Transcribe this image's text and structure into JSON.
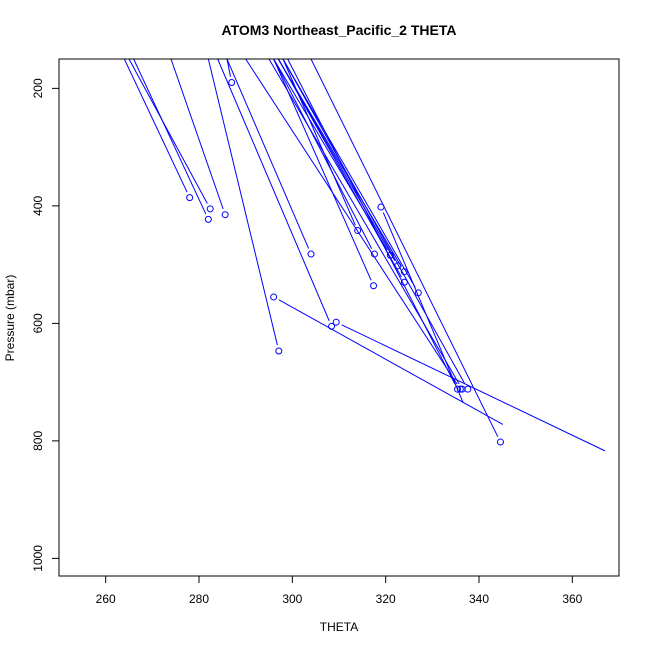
{
  "chart_data": {
    "type": "line",
    "title": "ATOM3 Northeast_Pacific_2 THETA",
    "xlabel": "THETA",
    "ylabel": "Pressure (mbar)",
    "xlim": [
      250,
      370
    ],
    "ylim": [
      1030,
      150
    ],
    "y_reversed": true,
    "x_ticks": [
      260,
      280,
      300,
      320,
      340,
      360
    ],
    "y_ticks": [
      200,
      400,
      600,
      800,
      1000
    ],
    "grid": false,
    "series_color": "#0000ff",
    "series": [
      {
        "values": [
          [
            287.0,
            190
          ],
          [
            286.0,
            150
          ]
        ]
      },
      {
        "values": [
          [
            278.0,
            386
          ],
          [
            264.0,
            150
          ]
        ]
      },
      {
        "values": [
          [
            282.4,
            405
          ],
          [
            265.0,
            150
          ]
        ]
      },
      {
        "values": [
          [
            282.0,
            423
          ],
          [
            266.0,
            150
          ]
        ]
      },
      {
        "values": [
          [
            285.6,
            415
          ],
          [
            274.0,
            150
          ]
        ]
      },
      {
        "values": [
          [
            297.1,
            647
          ],
          [
            282.0,
            150
          ]
        ]
      },
      {
        "values": [
          [
            304.0,
            482
          ],
          [
            286.0,
            150
          ]
        ]
      },
      {
        "values": [
          [
            296.0,
            555
          ],
          [
            345.1,
            772
          ]
        ]
      },
      {
        "values": [
          [
            308.4,
            605
          ],
          [
            284.0,
            150
          ]
        ]
      },
      {
        "values": [
          [
            309.4,
            598
          ],
          [
            367.0,
            817
          ]
        ]
      },
      {
        "values": [
          [
            336.0,
            712
          ],
          [
            290.0,
            150
          ]
        ]
      },
      {
        "values": [
          [
            344.6,
            802
          ],
          [
            304.0,
            150
          ]
        ]
      },
      {
        "values": [
          [
            314.0,
            442
          ],
          [
            298.0,
            150
          ]
        ]
      },
      {
        "values": [
          [
            317.6,
            482
          ],
          [
            296.0,
            150
          ]
        ]
      },
      {
        "values": [
          [
            317.4,
            536
          ],
          [
            296.0,
            150
          ]
        ]
      },
      {
        "values": [
          [
            319.0,
            402
          ],
          [
            336.6,
            735
          ]
        ]
      },
      {
        "values": [
          [
            321.0,
            484
          ],
          [
            296.0,
            150
          ]
        ]
      },
      {
        "values": [
          [
            322.6,
            502
          ],
          [
            297.0,
            150
          ]
        ]
      },
      {
        "values": [
          [
            324.0,
            512
          ],
          [
            297.0,
            150
          ]
        ]
      },
      {
        "values": [
          [
            324.0,
            530
          ],
          [
            297.0,
            150
          ]
        ]
      },
      {
        "values": [
          [
            327.0,
            548
          ],
          [
            298.0,
            150
          ]
        ]
      },
      {
        "values": [
          [
            336.4,
            712
          ],
          [
            295.0,
            150
          ]
        ]
      },
      {
        "values": [
          [
            337.6,
            712
          ],
          [
            298.0,
            150
          ]
        ]
      },
      {
        "values": [
          [
            335.4,
            712
          ],
          [
            299.0,
            150
          ]
        ]
      }
    ]
  }
}
